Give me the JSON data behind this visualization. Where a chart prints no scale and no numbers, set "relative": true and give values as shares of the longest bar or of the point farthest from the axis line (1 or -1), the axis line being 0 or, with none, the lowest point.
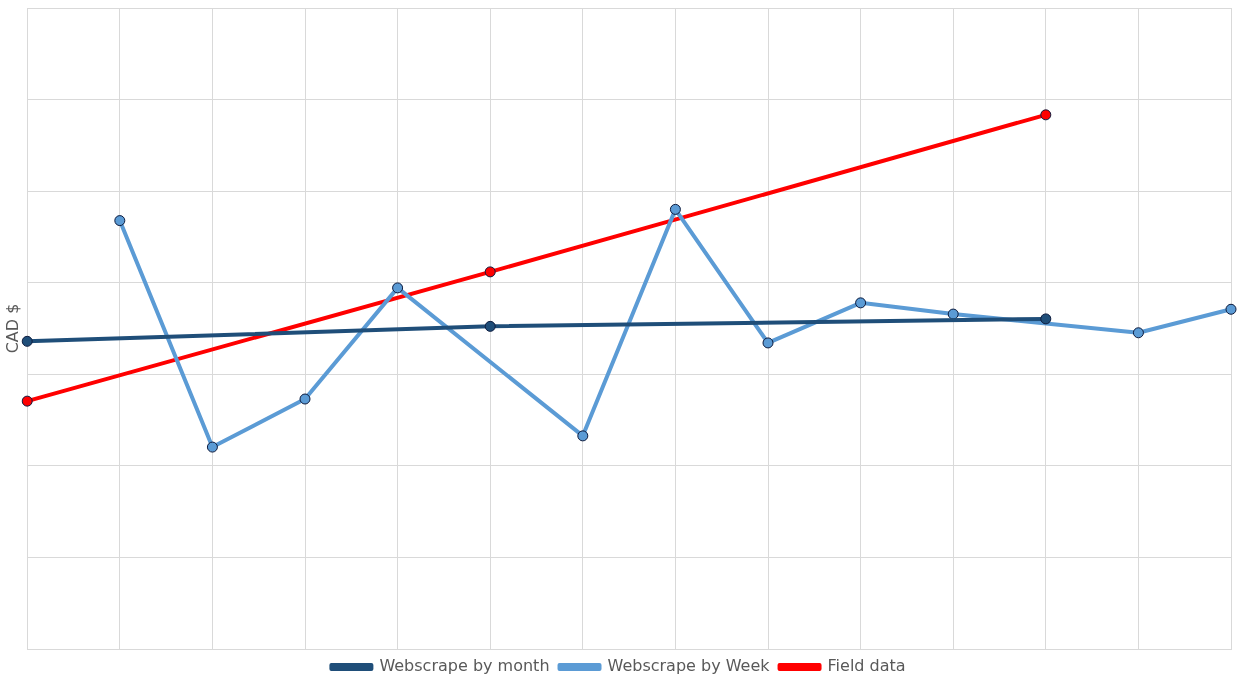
{
  "chart_data": {
    "type": "line",
    "relative": true,
    "ylabel": "CAD $",
    "categories": [
      null,
      null,
      null,
      null,
      null,
      null,
      null,
      null,
      null,
      null,
      null,
      null,
      null,
      null
    ],
    "series": [
      {
        "name": "Webscrape by month",
        "color": "#1f4e79",
        "values": [
          0.576,
          null,
          null,
          null,
          null,
          0.604,
          null,
          null,
          null,
          null,
          null,
          0.618,
          null,
          null
        ]
      },
      {
        "name": "Webscrape by Week",
        "color": "#5b9bd5",
        "values": [
          null,
          0.802,
          0.378,
          0.468,
          0.676,
          null,
          0.399,
          0.823,
          0.573,
          0.648,
          0.627,
          null,
          0.592,
          0.636
        ]
      },
      {
        "name": "Field data",
        "color": "#ff0000",
        "values": [
          0.464,
          null,
          null,
          null,
          null,
          0.706,
          null,
          null,
          null,
          null,
          null,
          1,
          null,
          null
        ]
      }
    ],
    "grid": true,
    "legend": "bottom",
    "marker": "circle",
    "line_style": "solid",
    "tick_labels": false
  }
}
